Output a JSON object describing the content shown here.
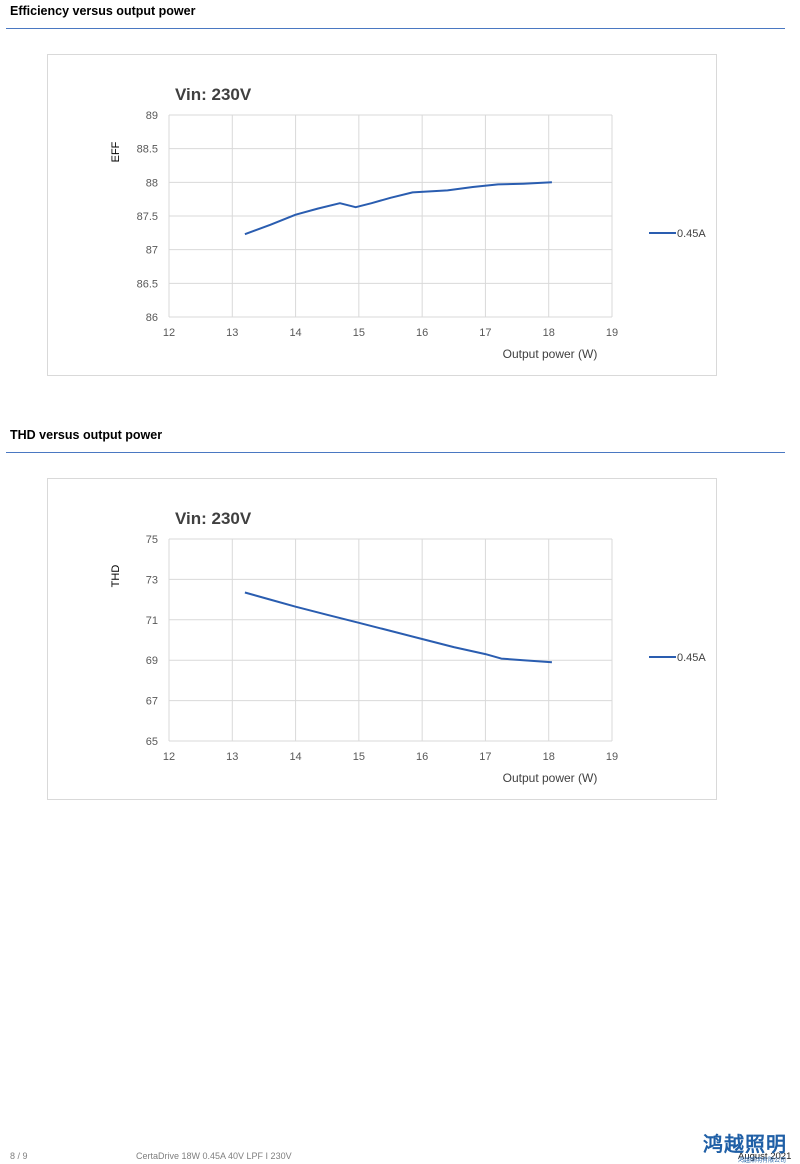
{
  "sections": [
    {
      "title": "Efficiency versus output power"
    },
    {
      "title": "THD versus output power"
    }
  ],
  "chart_data": [
    {
      "type": "line",
      "title": "Vin: 230V",
      "xlabel": "Output power (W)",
      "ylabel": "EFF",
      "xlim": [
        12,
        19
      ],
      "ylim": [
        86,
        89
      ],
      "xticks": [
        12,
        13,
        14,
        15,
        16,
        17,
        18,
        19
      ],
      "yticks": [
        "86",
        "86.5",
        "87",
        "87.5",
        "88",
        "88.5",
        "89"
      ],
      "grid": true,
      "legend": "right",
      "series": [
        {
          "name": "0.45A",
          "color": "#2a5db0",
          "x": [
            13.2,
            13.6,
            14.0,
            14.35,
            14.7,
            14.95,
            15.2,
            15.5,
            15.85,
            16.4,
            16.8,
            17.2,
            17.6,
            18.05
          ],
          "y": [
            87.23,
            87.37,
            87.52,
            87.61,
            87.69,
            87.63,
            87.69,
            87.77,
            87.85,
            87.88,
            87.93,
            87.97,
            87.98,
            88.0
          ]
        }
      ]
    },
    {
      "type": "line",
      "title": "Vin: 230V",
      "xlabel": "Output power (W)",
      "ylabel": "THD",
      "xlim": [
        12,
        19
      ],
      "ylim": [
        65,
        75
      ],
      "xticks": [
        12,
        13,
        14,
        15,
        16,
        17,
        18,
        19
      ],
      "yticks": [
        "65",
        "67",
        "69",
        "71",
        "73",
        "75"
      ],
      "grid": true,
      "legend": "right",
      "series": [
        {
          "name": "0.45A",
          "color": "#2a5db0",
          "x": [
            13.2,
            13.6,
            14.0,
            14.5,
            15.0,
            15.5,
            16.0,
            16.5,
            17.0,
            17.25,
            17.6,
            18.05
          ],
          "y": [
            72.35,
            72.0,
            71.65,
            71.25,
            70.85,
            70.45,
            70.05,
            69.65,
            69.3,
            69.08,
            69.0,
            68.9
          ]
        }
      ]
    }
  ],
  "footer": {
    "page": "8 / 9",
    "product": "CertaDrive 18W 0.45A 40V LPF I 230V",
    "date": "August 2021",
    "logo": "鸿越照明",
    "logo_sub": "鸿越照明有限公司"
  }
}
